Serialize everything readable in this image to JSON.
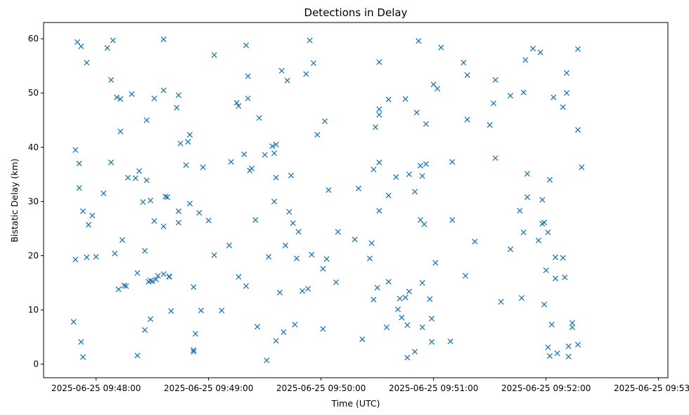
{
  "chart_data": {
    "type": "scatter",
    "title": "Detections in Delay",
    "xlabel": "Time (UTC)",
    "ylabel": "Bistatic Delay (km)",
    "marker": "x",
    "color": "#1f77b4",
    "x_unit": "seconds after 2025-06-25 09:48:00 UTC",
    "xlim": [
      -28,
      305
    ],
    "ylim": [
      -2.5,
      63
    ],
    "x_ticks": [
      0,
      60,
      120,
      180,
      240,
      300
    ],
    "x_tick_labels": [
      "2025-06-25 09:48:00",
      "2025-06-25 09:49:00",
      "2025-06-25 09:50:00",
      "2025-06-25 09:51:00",
      "2025-06-25 09:52:00",
      "2025-06-25 09:53:00"
    ],
    "y_ticks": [
      0,
      10,
      20,
      30,
      40,
      50,
      60
    ],
    "y_tick_labels": [
      "0",
      "10",
      "20",
      "30",
      "40",
      "50",
      "60"
    ],
    "points": [
      [
        -12,
        7.8
      ],
      [
        -11,
        39.5
      ],
      [
        -11,
        19.3
      ],
      [
        -10,
        59.4
      ],
      [
        -9,
        32.5
      ],
      [
        -9,
        37.0
      ],
      [
        -8,
        58.6
      ],
      [
        -8,
        4.1
      ],
      [
        -7,
        1.3
      ],
      [
        -7,
        28.2
      ],
      [
        -5,
        55.6
      ],
      [
        -5,
        19.7
      ],
      [
        -4,
        25.7
      ],
      [
        -2,
        27.4
      ],
      [
        0,
        19.8
      ],
      [
        4,
        31.5
      ],
      [
        6,
        58.3
      ],
      [
        8,
        52.4
      ],
      [
        8,
        37.2
      ],
      [
        9,
        59.7
      ],
      [
        10,
        20.4
      ],
      [
        11,
        49.2
      ],
      [
        12,
        13.8
      ],
      [
        13,
        48.9
      ],
      [
        13,
        42.9
      ],
      [
        14,
        22.9
      ],
      [
        15,
        14.5
      ],
      [
        17,
        34.4
      ],
      [
        16,
        14.4
      ],
      [
        19,
        49.8
      ],
      [
        21,
        34.3
      ],
      [
        22,
        16.8
      ],
      [
        22,
        1.6
      ],
      [
        23,
        35.6
      ],
      [
        25,
        29.9
      ],
      [
        26,
        6.3
      ],
      [
        26,
        20.9
      ],
      [
        27,
        45.0
      ],
      [
        27,
        33.9
      ],
      [
        28,
        15.2
      ],
      [
        29,
        15.4
      ],
      [
        29,
        30.2
      ],
      [
        29,
        8.3
      ],
      [
        30,
        15.3
      ],
      [
        31,
        49.0
      ],
      [
        31,
        26.4
      ],
      [
        32,
        15.6
      ],
      [
        33,
        16.3
      ],
      [
        36,
        59.9
      ],
      [
        36,
        50.5
      ],
      [
        36,
        25.4
      ],
      [
        36,
        16.6
      ],
      [
        37,
        30.9
      ],
      [
        38,
        30.8
      ],
      [
        39,
        16.1
      ],
      [
        39,
        16.2
      ],
      [
        40,
        9.8
      ],
      [
        43,
        47.3
      ],
      [
        44,
        49.6
      ],
      [
        44,
        28.2
      ],
      [
        44,
        26.1
      ],
      [
        45,
        40.7
      ],
      [
        48,
        36.7
      ],
      [
        49,
        41.0
      ],
      [
        50,
        42.3
      ],
      [
        50,
        29.6
      ],
      [
        52,
        14.2
      ],
      [
        52,
        2.6
      ],
      [
        52,
        2.3
      ],
      [
        53,
        5.6
      ],
      [
        55,
        27.9
      ],
      [
        56,
        9.9
      ],
      [
        57,
        36.3
      ],
      [
        60,
        26.5
      ],
      [
        63,
        57.0
      ],
      [
        63,
        20.1
      ],
      [
        67,
        9.9
      ],
      [
        71,
        21.9
      ],
      [
        72,
        37.3
      ],
      [
        75,
        48.2
      ],
      [
        76,
        47.6
      ],
      [
        76,
        16.1
      ],
      [
        79,
        38.7
      ],
      [
        80,
        14.4
      ],
      [
        80,
        58.8
      ],
      [
        81,
        53.1
      ],
      [
        81,
        49.0
      ],
      [
        82,
        35.7
      ],
      [
        83,
        36.1
      ],
      [
        85,
        26.6
      ],
      [
        86,
        6.9
      ],
      [
        87,
        45.4
      ],
      [
        90,
        38.6
      ],
      [
        91,
        0.7
      ],
      [
        92,
        19.8
      ],
      [
        94,
        40.2
      ],
      [
        95,
        38.9
      ],
      [
        95,
        30.0
      ],
      [
        96,
        40.5
      ],
      [
        96,
        34.4
      ],
      [
        96,
        4.3
      ],
      [
        98,
        13.2
      ],
      [
        99,
        54.1
      ],
      [
        100,
        5.9
      ],
      [
        101,
        21.9
      ],
      [
        102,
        52.3
      ],
      [
        103,
        28.1
      ],
      [
        104,
        34.8
      ],
      [
        105,
        26.0
      ],
      [
        106,
        7.3
      ],
      [
        107,
        19.5
      ],
      [
        108,
        24.4
      ],
      [
        110,
        13.5
      ],
      [
        112,
        53.5
      ],
      [
        113,
        13.9
      ],
      [
        114,
        59.7
      ],
      [
        115,
        20.2
      ],
      [
        116,
        55.5
      ],
      [
        118,
        42.3
      ],
      [
        121,
        6.5
      ],
      [
        121,
        17.6
      ],
      [
        122,
        44.8
      ],
      [
        123,
        19.4
      ],
      [
        124,
        32.1
      ],
      [
        128,
        15.1
      ],
      [
        129,
        24.4
      ],
      [
        138,
        23.0
      ],
      [
        140,
        32.4
      ],
      [
        142,
        4.6
      ],
      [
        146,
        19.5
      ],
      [
        147,
        22.3
      ],
      [
        148,
        35.9
      ],
      [
        148,
        11.9
      ],
      [
        149,
        43.7
      ],
      [
        150,
        14.1
      ],
      [
        151,
        55.7
      ],
      [
        151,
        46.0
      ],
      [
        151,
        47.0
      ],
      [
        151,
        37.2
      ],
      [
        151,
        28.3
      ],
      [
        155,
        6.8
      ],
      [
        156,
        15.2
      ],
      [
        156,
        31.1
      ],
      [
        156,
        48.8
      ],
      [
        160,
        34.5
      ],
      [
        161,
        10.1
      ],
      [
        162,
        12.1
      ],
      [
        163,
        8.6
      ],
      [
        165,
        48.9
      ],
      [
        165,
        12.3
      ],
      [
        166,
        1.2
      ],
      [
        166,
        7.2
      ],
      [
        167,
        13.4
      ],
      [
        167,
        35.0
      ],
      [
        170,
        31.8
      ],
      [
        170,
        2.3
      ],
      [
        171,
        46.4
      ],
      [
        172,
        59.6
      ],
      [
        173,
        36.6
      ],
      [
        173,
        26.6
      ],
      [
        174,
        15.0
      ],
      [
        174,
        34.7
      ],
      [
        174,
        6.8
      ],
      [
        175,
        25.8
      ],
      [
        176,
        36.9
      ],
      [
        176,
        44.3
      ],
      [
        178,
        12.0
      ],
      [
        179,
        4.1
      ],
      [
        179,
        8.4
      ],
      [
        180,
        51.6
      ],
      [
        181,
        18.7
      ],
      [
        182,
        50.8
      ],
      [
        184,
        58.4
      ],
      [
        189,
        4.2
      ],
      [
        190,
        37.3
      ],
      [
        190,
        26.6
      ],
      [
        196,
        55.6
      ],
      [
        197,
        16.3
      ],
      [
        198,
        53.3
      ],
      [
        198,
        45.1
      ],
      [
        202,
        22.6
      ],
      [
        210,
        44.1
      ],
      [
        212,
        48.1
      ],
      [
        213,
        52.4
      ],
      [
        213,
        38.0
      ],
      [
        216,
        11.5
      ],
      [
        221,
        49.5
      ],
      [
        221,
        21.2
      ],
      [
        226,
        28.3
      ],
      [
        227,
        12.2
      ],
      [
        228,
        24.3
      ],
      [
        228,
        50.1
      ],
      [
        229,
        56.1
      ],
      [
        230,
        30.8
      ],
      [
        230,
        35.1
      ],
      [
        233,
        58.2
      ],
      [
        236,
        22.8
      ],
      [
        237,
        57.5
      ],
      [
        238,
        30.3
      ],
      [
        238,
        25.9
      ],
      [
        239,
        11.0
      ],
      [
        239,
        26.1
      ],
      [
        240,
        17.3
      ],
      [
        241,
        24.3
      ],
      [
        241,
        3.1
      ],
      [
        242,
        1.5
      ],
      [
        242,
        34.0
      ],
      [
        243,
        7.3
      ],
      [
        244,
        49.2
      ],
      [
        245,
        15.8
      ],
      [
        245,
        19.7
      ],
      [
        246,
        2.0
      ],
      [
        249,
        47.4
      ],
      [
        249,
        19.6
      ],
      [
        250,
        16.0
      ],
      [
        251,
        53.7
      ],
      [
        251,
        50.0
      ],
      [
        252,
        3.3
      ],
      [
        252,
        1.4
      ],
      [
        254,
        6.8
      ],
      [
        254,
        7.6
      ],
      [
        257,
        3.6
      ],
      [
        257,
        58.1
      ],
      [
        257,
        43.2
      ],
      [
        259,
        36.3
      ]
    ]
  }
}
